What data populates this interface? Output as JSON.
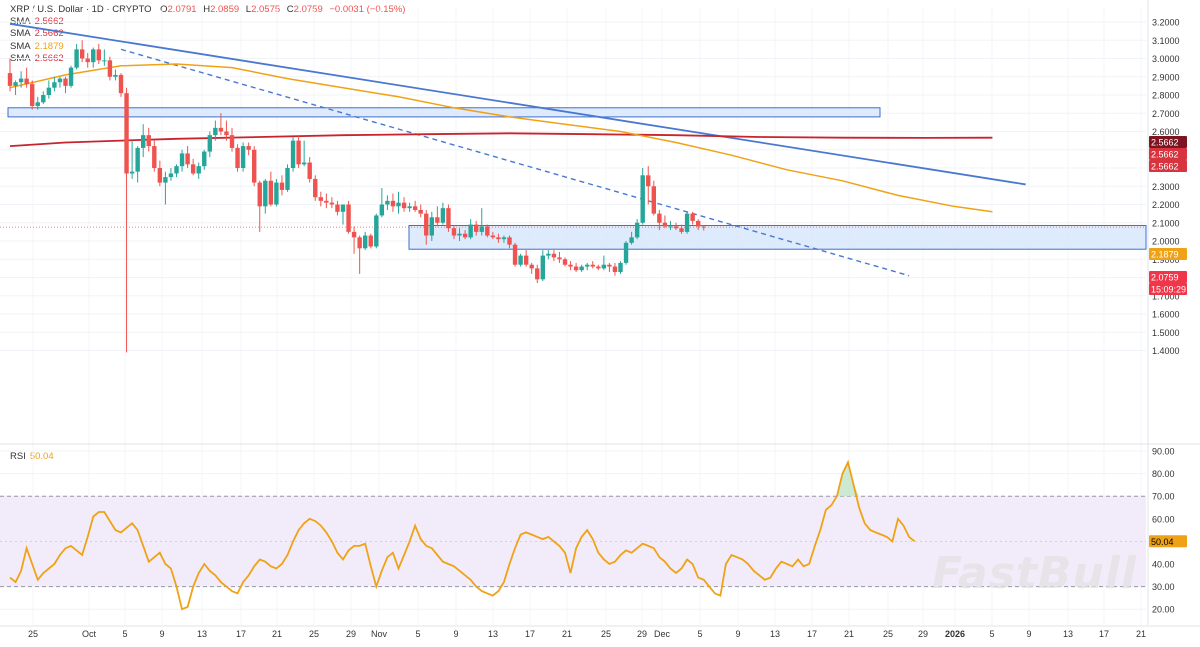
{
  "header": {
    "symbol": "XRP / U.S. Dollar · 1D · CRYPTO",
    "open_label": "O",
    "open": "2.0791",
    "high_label": "H",
    "high": "2.0859",
    "low_label": "L",
    "low": "2.0575",
    "close_label": "C",
    "close": "2.0759",
    "change": "−0.0031 (−0.15%)"
  },
  "indicators": [
    {
      "label": "SMA",
      "value": "2.5662",
      "color": "#d8343f"
    },
    {
      "label": "SMA",
      "value": "2.5662",
      "color": "#d8343f"
    },
    {
      "label": "SMA",
      "value": "2.1879",
      "color": "#f0a216"
    },
    {
      "label": "SMA",
      "value": "2.5662",
      "color": "#d8343f"
    }
  ],
  "rsi": {
    "label": "RSI",
    "value": "50.04",
    "color": "#f0a216"
  },
  "price_axis_badges": [
    {
      "text": "2.5662",
      "bg": "#7d1420"
    },
    {
      "text": "2.5662",
      "bg": "#d8343f"
    },
    {
      "text": "2.5662",
      "bg": "#d8343f"
    },
    {
      "text": "2.1879",
      "bg": "#f0a216"
    },
    {
      "text": "2.0759",
      "bg": "#f2364a"
    },
    {
      "text": "15:09:29",
      "bg": "#f2364a"
    }
  ],
  "rsi_badge": {
    "text": "50.04",
    "bg": "#f0a216"
  },
  "watermark": "FastBull",
  "colors": {
    "up": "#26a69a",
    "down": "#ef5350",
    "trendline": "#4a78d0",
    "sma_short": "#f0a216",
    "sma_long": "#c8242e",
    "zone": "#d8e8fb",
    "rsi_band": "#f2ecfa"
  },
  "chart_data": [
    {
      "type": "candlestick",
      "title": "XRP / U.S. Dollar · 1D · CRYPTO",
      "y_ticks": [
        "3.2000",
        "3.1000",
        "3.0000",
        "2.9000",
        "2.8000",
        "2.7000",
        "2.6000",
        "2.5000",
        "2.4000",
        "2.3000",
        "2.2000",
        "2.1000",
        "2.0000",
        "1.9000",
        "1.8000",
        "1.7000",
        "1.6000",
        "1.5000",
        "1.4000"
      ],
      "ylim": [
        1.37,
        3.22
      ],
      "x_ticks": [
        "25",
        "Oct",
        "5",
        "9",
        "13",
        "17",
        "21",
        "25",
        "29",
        "Nov",
        "5",
        "9",
        "13",
        "17",
        "21",
        "25",
        "29",
        "Dec",
        "5",
        "9",
        "13",
        "17",
        "21",
        "25",
        "29",
        "2026",
        "5",
        "9",
        "13",
        "17",
        "21"
      ],
      "grid": true,
      "candles": [
        {
          "o": 2.92,
          "h": 3.0,
          "l": 2.82,
          "c": 2.85
        },
        {
          "o": 2.85,
          "h": 2.88,
          "l": 2.8,
          "c": 2.87
        },
        {
          "o": 2.87,
          "h": 2.93,
          "l": 2.84,
          "c": 2.89
        },
        {
          "o": 2.89,
          "h": 2.95,
          "l": 2.84,
          "c": 2.86
        },
        {
          "o": 2.86,
          "h": 2.88,
          "l": 2.72,
          "c": 2.74
        },
        {
          "o": 2.74,
          "h": 2.79,
          "l": 2.72,
          "c": 2.76
        },
        {
          "o": 2.76,
          "h": 2.82,
          "l": 2.75,
          "c": 2.8
        },
        {
          "o": 2.8,
          "h": 2.88,
          "l": 2.78,
          "c": 2.84
        },
        {
          "o": 2.84,
          "h": 2.9,
          "l": 2.82,
          "c": 2.87
        },
        {
          "o": 2.87,
          "h": 2.9,
          "l": 2.84,
          "c": 2.89
        },
        {
          "o": 2.89,
          "h": 2.9,
          "l": 2.81,
          "c": 2.85
        },
        {
          "o": 2.85,
          "h": 2.96,
          "l": 2.84,
          "c": 2.95
        },
        {
          "o": 2.95,
          "h": 3.08,
          "l": 2.94,
          "c": 3.05
        },
        {
          "o": 3.05,
          "h": 3.1,
          "l": 2.98,
          "c": 3.0
        },
        {
          "o": 3.0,
          "h": 3.03,
          "l": 2.95,
          "c": 2.98
        },
        {
          "o": 2.98,
          "h": 3.06,
          "l": 2.95,
          "c": 3.05
        },
        {
          "o": 3.05,
          "h": 3.08,
          "l": 2.97,
          "c": 2.99
        },
        {
          "o": 2.99,
          "h": 3.05,
          "l": 2.96,
          "c": 2.99
        },
        {
          "o": 2.99,
          "h": 3.01,
          "l": 2.88,
          "c": 2.9
        },
        {
          "o": 2.9,
          "h": 2.94,
          "l": 2.88,
          "c": 2.91
        },
        {
          "o": 2.91,
          "h": 2.92,
          "l": 2.79,
          "c": 2.81
        },
        {
          "o": 2.81,
          "h": 2.84,
          "l": 1.39,
          "c": 2.37
        },
        {
          "o": 2.37,
          "h": 2.55,
          "l": 2.34,
          "c": 2.38
        },
        {
          "o": 2.38,
          "h": 2.52,
          "l": 2.32,
          "c": 2.51
        },
        {
          "o": 2.51,
          "h": 2.64,
          "l": 2.46,
          "c": 2.58
        },
        {
          "o": 2.58,
          "h": 2.62,
          "l": 2.49,
          "c": 2.52
        },
        {
          "o": 2.52,
          "h": 2.55,
          "l": 2.38,
          "c": 2.4
        },
        {
          "o": 2.4,
          "h": 2.44,
          "l": 2.3,
          "c": 2.32
        },
        {
          "o": 2.32,
          "h": 2.38,
          "l": 2.2,
          "c": 2.35
        },
        {
          "o": 2.35,
          "h": 2.4,
          "l": 2.33,
          "c": 2.37
        },
        {
          "o": 2.37,
          "h": 2.42,
          "l": 2.35,
          "c": 2.41
        },
        {
          "o": 2.41,
          "h": 2.5,
          "l": 2.38,
          "c": 2.48
        },
        {
          "o": 2.48,
          "h": 2.52,
          "l": 2.4,
          "c": 2.42
        },
        {
          "o": 2.42,
          "h": 2.45,
          "l": 2.36,
          "c": 2.37
        },
        {
          "o": 2.37,
          "h": 2.43,
          "l": 2.34,
          "c": 2.41
        },
        {
          "o": 2.41,
          "h": 2.5,
          "l": 2.39,
          "c": 2.49
        },
        {
          "o": 2.49,
          "h": 2.6,
          "l": 2.46,
          "c": 2.58
        },
        {
          "o": 2.58,
          "h": 2.66,
          "l": 2.55,
          "c": 2.62
        },
        {
          "o": 2.62,
          "h": 2.7,
          "l": 2.58,
          "c": 2.6
        },
        {
          "o": 2.6,
          "h": 2.66,
          "l": 2.55,
          "c": 2.58
        },
        {
          "o": 2.58,
          "h": 2.62,
          "l": 2.49,
          "c": 2.51
        },
        {
          "o": 2.51,
          "h": 2.53,
          "l": 2.38,
          "c": 2.4
        },
        {
          "o": 2.4,
          "h": 2.54,
          "l": 2.38,
          "c": 2.52
        },
        {
          "o": 2.52,
          "h": 2.54,
          "l": 2.47,
          "c": 2.5
        },
        {
          "o": 2.5,
          "h": 2.52,
          "l": 2.3,
          "c": 2.32
        },
        {
          "o": 2.32,
          "h": 2.33,
          "l": 2.05,
          "c": 2.19
        },
        {
          "o": 2.19,
          "h": 2.34,
          "l": 2.15,
          "c": 2.33
        },
        {
          "o": 2.33,
          "h": 2.38,
          "l": 2.19,
          "c": 2.2
        },
        {
          "o": 2.2,
          "h": 2.34,
          "l": 2.19,
          "c": 2.32
        },
        {
          "o": 2.32,
          "h": 2.36,
          "l": 2.25,
          "c": 2.28
        },
        {
          "o": 2.28,
          "h": 2.42,
          "l": 2.27,
          "c": 2.4
        },
        {
          "o": 2.4,
          "h": 2.57,
          "l": 2.38,
          "c": 2.55
        },
        {
          "o": 2.55,
          "h": 2.58,
          "l": 2.4,
          "c": 2.42
        },
        {
          "o": 2.42,
          "h": 2.55,
          "l": 2.41,
          "c": 2.43
        },
        {
          "o": 2.43,
          "h": 2.46,
          "l": 2.32,
          "c": 2.34
        },
        {
          "o": 2.34,
          "h": 2.36,
          "l": 2.22,
          "c": 2.24
        },
        {
          "o": 2.24,
          "h": 2.27,
          "l": 2.19,
          "c": 2.22
        },
        {
          "o": 2.22,
          "h": 2.26,
          "l": 2.18,
          "c": 2.21
        },
        {
          "o": 2.21,
          "h": 2.24,
          "l": 2.18,
          "c": 2.2
        },
        {
          "o": 2.2,
          "h": 2.22,
          "l": 2.14,
          "c": 2.16
        },
        {
          "o": 2.16,
          "h": 2.2,
          "l": 2.09,
          "c": 2.2
        },
        {
          "o": 2.2,
          "h": 2.22,
          "l": 2.04,
          "c": 2.05
        },
        {
          "o": 2.05,
          "h": 2.08,
          "l": 1.93,
          "c": 2.02
        },
        {
          "o": 2.02,
          "h": 2.03,
          "l": 1.82,
          "c": 1.96
        },
        {
          "o": 1.96,
          "h": 2.05,
          "l": 1.95,
          "c": 2.03
        },
        {
          "o": 2.03,
          "h": 2.04,
          "l": 1.96,
          "c": 1.97
        },
        {
          "o": 1.97,
          "h": 2.15,
          "l": 1.96,
          "c": 2.14
        },
        {
          "o": 2.14,
          "h": 2.29,
          "l": 2.13,
          "c": 2.2
        },
        {
          "o": 2.2,
          "h": 2.25,
          "l": 2.17,
          "c": 2.22
        },
        {
          "o": 2.22,
          "h": 2.26,
          "l": 2.16,
          "c": 2.19
        },
        {
          "o": 2.19,
          "h": 2.27,
          "l": 2.15,
          "c": 2.21
        },
        {
          "o": 2.21,
          "h": 2.24,
          "l": 2.16,
          "c": 2.18
        },
        {
          "o": 2.18,
          "h": 2.21,
          "l": 2.16,
          "c": 2.19
        },
        {
          "o": 2.19,
          "h": 2.22,
          "l": 2.16,
          "c": 2.17
        },
        {
          "o": 2.17,
          "h": 2.2,
          "l": 2.13,
          "c": 2.15
        },
        {
          "o": 2.15,
          "h": 2.17,
          "l": 1.98,
          "c": 2.03
        },
        {
          "o": 2.03,
          "h": 2.16,
          "l": 2.0,
          "c": 2.13
        },
        {
          "o": 2.13,
          "h": 2.19,
          "l": 2.08,
          "c": 2.1
        },
        {
          "o": 2.1,
          "h": 2.21,
          "l": 2.09,
          "c": 2.18
        },
        {
          "o": 2.18,
          "h": 2.2,
          "l": 2.05,
          "c": 2.07
        },
        {
          "o": 2.07,
          "h": 2.08,
          "l": 2.01,
          "c": 2.03
        },
        {
          "o": 2.03,
          "h": 2.07,
          "l": 2.0,
          "c": 2.04
        },
        {
          "o": 2.04,
          "h": 2.06,
          "l": 2.01,
          "c": 2.02
        },
        {
          "o": 2.02,
          "h": 2.12,
          "l": 2.01,
          "c": 2.09
        },
        {
          "o": 2.09,
          "h": 2.11,
          "l": 2.03,
          "c": 2.05
        },
        {
          "o": 2.05,
          "h": 2.18,
          "l": 2.03,
          "c": 2.08
        },
        {
          "o": 2.08,
          "h": 2.09,
          "l": 2.02,
          "c": 2.03
        },
        {
          "o": 2.03,
          "h": 2.05,
          "l": 2.01,
          "c": 2.02
        },
        {
          "o": 2.02,
          "h": 2.04,
          "l": 1.99,
          "c": 2.01
        },
        {
          "o": 2.01,
          "h": 2.03,
          "l": 1.99,
          "c": 2.02
        },
        {
          "o": 2.02,
          "h": 2.03,
          "l": 1.96,
          "c": 1.98
        },
        {
          "o": 1.98,
          "h": 1.99,
          "l": 1.86,
          "c": 1.87
        },
        {
          "o": 1.87,
          "h": 1.93,
          "l": 1.86,
          "c": 1.92
        },
        {
          "o": 1.92,
          "h": 1.95,
          "l": 1.86,
          "c": 1.87
        },
        {
          "o": 1.87,
          "h": 1.88,
          "l": 1.82,
          "c": 1.85
        },
        {
          "o": 1.85,
          "h": 1.87,
          "l": 1.77,
          "c": 1.79
        },
        {
          "o": 1.79,
          "h": 1.95,
          "l": 1.78,
          "c": 1.92
        },
        {
          "o": 1.92,
          "h": 1.95,
          "l": 1.9,
          "c": 1.93
        },
        {
          "o": 1.93,
          "h": 1.95,
          "l": 1.89,
          "c": 1.91
        },
        {
          "o": 1.91,
          "h": 1.94,
          "l": 1.88,
          "c": 1.9
        },
        {
          "o": 1.9,
          "h": 1.91,
          "l": 1.86,
          "c": 1.87
        },
        {
          "o": 1.87,
          "h": 1.89,
          "l": 1.84,
          "c": 1.86
        },
        {
          "o": 1.86,
          "h": 1.88,
          "l": 1.83,
          "c": 1.84
        },
        {
          "o": 1.84,
          "h": 1.87,
          "l": 1.83,
          "c": 1.86
        },
        {
          "o": 1.86,
          "h": 1.88,
          "l": 1.84,
          "c": 1.87
        },
        {
          "o": 1.87,
          "h": 1.89,
          "l": 1.85,
          "c": 1.86
        },
        {
          "o": 1.86,
          "h": 1.87,
          "l": 1.84,
          "c": 1.85
        },
        {
          "o": 1.85,
          "h": 1.92,
          "l": 1.84,
          "c": 1.87
        },
        {
          "o": 1.87,
          "h": 1.88,
          "l": 1.83,
          "c": 1.86
        },
        {
          "o": 1.86,
          "h": 1.88,
          "l": 1.81,
          "c": 1.83
        },
        {
          "o": 1.83,
          "h": 1.89,
          "l": 1.82,
          "c": 1.88
        },
        {
          "o": 1.88,
          "h": 2.0,
          "l": 1.87,
          "c": 1.99
        },
        {
          "o": 1.99,
          "h": 2.05,
          "l": 1.98,
          "c": 2.02
        },
        {
          "o": 2.02,
          "h": 2.12,
          "l": 2.01,
          "c": 2.1
        },
        {
          "o": 2.1,
          "h": 2.4,
          "l": 2.09,
          "c": 2.36
        },
        {
          "o": 2.36,
          "h": 2.41,
          "l": 2.2,
          "c": 2.3
        },
        {
          "o": 2.3,
          "h": 2.33,
          "l": 2.14,
          "c": 2.15
        },
        {
          "o": 2.15,
          "h": 2.17,
          "l": 2.06,
          "c": 2.1
        },
        {
          "o": 2.1,
          "h": 2.14,
          "l": 2.07,
          "c": 2.08
        },
        {
          "o": 2.08,
          "h": 2.11,
          "l": 2.06,
          "c": 2.08
        },
        {
          "o": 2.08,
          "h": 2.1,
          "l": 2.06,
          "c": 2.07
        },
        {
          "o": 2.07,
          "h": 2.09,
          "l": 2.04,
          "c": 2.05
        },
        {
          "o": 2.05,
          "h": 2.16,
          "l": 2.04,
          "c": 2.15
        },
        {
          "o": 2.15,
          "h": 2.16,
          "l": 2.09,
          "c": 2.11
        },
        {
          "o": 2.11,
          "h": 2.12,
          "l": 2.06,
          "c": 2.08
        },
        {
          "o": 2.0791,
          "h": 2.0859,
          "l": 2.0575,
          "c": 2.0759
        }
      ],
      "sma_short": [
        [
          0,
          2.84
        ],
        [
          10,
          2.91
        ],
        [
          20,
          2.96
        ],
        [
          30,
          2.97
        ],
        [
          40,
          2.95
        ],
        [
          50,
          2.89
        ],
        [
          60,
          2.84
        ],
        [
          70,
          2.79
        ],
        [
          80,
          2.73
        ],
        [
          90,
          2.68
        ],
        [
          100,
          2.64
        ],
        [
          110,
          2.6
        ],
        [
          120,
          2.54
        ],
        [
          130,
          2.47
        ],
        [
          140,
          2.39
        ],
        [
          150,
          2.33
        ],
        [
          160,
          2.25
        ],
        [
          170,
          2.19
        ],
        [
          177,
          2.16
        ]
      ],
      "sma_long": [
        [
          0,
          2.52
        ],
        [
          10,
          2.54
        ],
        [
          20,
          2.55
        ],
        [
          30,
          2.56
        ],
        [
          45,
          2.57
        ],
        [
          60,
          2.58
        ],
        [
          75,
          2.585
        ],
        [
          90,
          2.59
        ],
        [
          105,
          2.585
        ],
        [
          120,
          2.58
        ],
        [
          135,
          2.57
        ],
        [
          150,
          2.566
        ],
        [
          165,
          2.565
        ],
        [
          177,
          2.5662
        ]
      ],
      "trendline_solid": [
        [
          0,
          3.19
        ],
        [
          183,
          2.31
        ]
      ],
      "trendline_dashed": [
        [
          20,
          3.05
        ],
        [
          162,
          1.81
        ]
      ],
      "zones": [
        {
          "from": 2.68,
          "to": 2.73
        },
        {
          "from": 1.955,
          "to": 2.085
        }
      ]
    },
    {
      "type": "line",
      "title": "RSI",
      "y_ticks": [
        "90.00",
        "80.00",
        "70.00",
        "60.00",
        "50.00",
        "40.00",
        "30.00",
        "20.00"
      ],
      "ylim": [
        14,
        93
      ],
      "bands": [
        30,
        70
      ],
      "values": [
        34,
        32,
        37,
        47,
        40,
        33,
        36,
        38,
        40,
        44,
        47,
        48,
        46,
        44,
        52,
        61,
        63,
        63,
        59,
        55,
        54,
        56,
        58,
        55,
        48,
        41,
        43,
        45,
        40,
        38,
        30,
        20,
        21,
        30,
        36,
        40,
        37,
        35,
        32,
        30,
        28,
        27,
        32,
        35,
        39,
        42,
        41,
        39,
        38,
        40,
        44,
        50,
        55,
        58,
        60,
        59,
        57,
        54,
        50,
        45,
        42,
        46,
        48,
        48,
        49,
        39,
        30,
        37,
        43,
        45,
        38,
        44,
        50,
        57,
        51,
        48,
        47,
        44,
        41,
        40,
        39,
        37,
        35,
        33,
        30,
        28,
        27,
        26,
        28,
        32,
        40,
        47,
        53,
        54,
        53,
        52,
        51,
        52,
        50,
        48,
        45,
        36,
        47,
        52,
        55,
        51,
        45,
        42,
        40,
        41,
        44,
        46,
        45,
        47,
        49,
        48,
        47,
        43,
        41,
        38,
        36,
        38,
        42,
        40,
        34,
        33,
        30,
        27,
        26,
        40,
        44,
        43,
        42,
        40,
        37,
        35,
        33,
        34,
        38,
        41,
        40,
        39,
        42,
        39,
        40,
        48,
        55,
        64,
        66,
        70,
        80,
        85,
        75,
        65,
        58,
        55,
        54,
        53,
        52,
        50,
        60,
        57,
        52,
        50.04
      ],
      "last": 50.04
    }
  ]
}
